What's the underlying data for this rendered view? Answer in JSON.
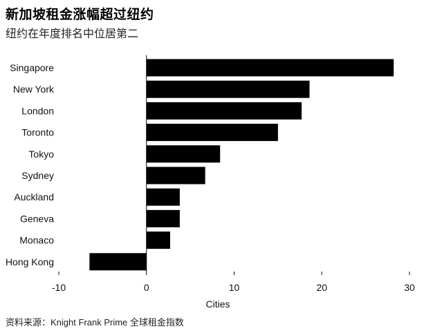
{
  "title": "新加坡租金涨幅超过纽约",
  "subtitle": "纽约在年度排名中位居第二",
  "source": "资料来源：Knight Frank Prime 全球租金指数",
  "chart_data": {
    "type": "bar",
    "orientation": "horizontal",
    "categories": [
      "Singapore",
      "New York",
      "London",
      "Toronto",
      "Tokyo",
      "Sydney",
      "Auckland",
      "Geneva",
      "Monaco",
      "Hong Kong"
    ],
    "values": [
      28.2,
      18.6,
      17.7,
      15.0,
      8.4,
      6.7,
      3.8,
      3.8,
      2.7,
      -6.5
    ],
    "xlabel": "Cities",
    "xlim": [
      -10,
      30
    ],
    "xticks": [
      -10,
      0,
      10,
      20,
      30
    ],
    "grid": false,
    "bar_color": "#000000"
  }
}
